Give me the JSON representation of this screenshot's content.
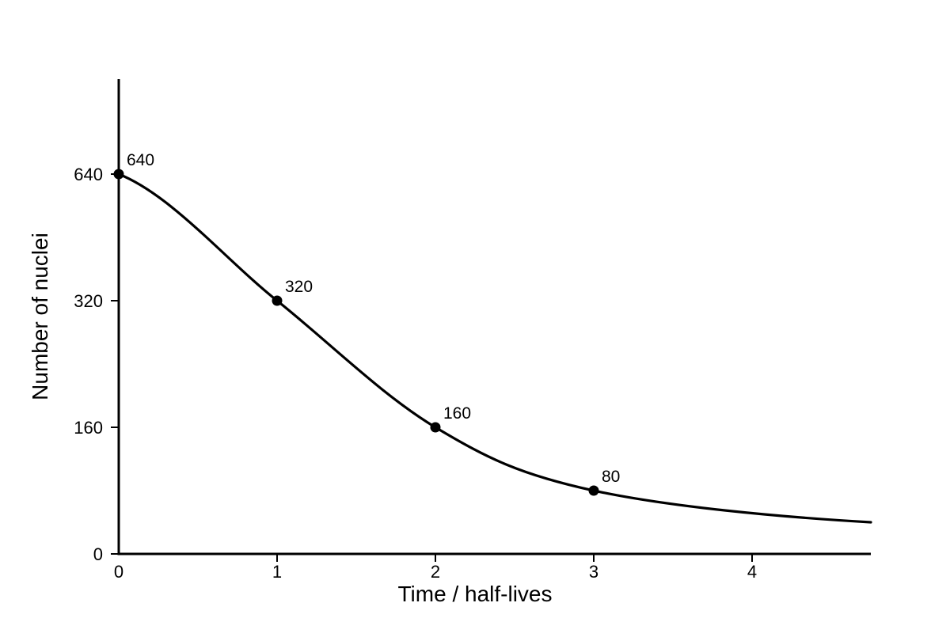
{
  "chart_data": {
    "type": "line",
    "title": "",
    "xlabel": "Time / half-lives",
    "ylabel": "Number of nuclei",
    "x_ticks": [
      "0",
      "1",
      "2",
      "3",
      "4"
    ],
    "y_ticks": [
      "0",
      "160",
      "320",
      "640"
    ],
    "series": [
      {
        "points": [
          {
            "x": 0,
            "y": 640,
            "label": "640"
          },
          {
            "x": 1,
            "y": 320,
            "label": "320"
          },
          {
            "x": 2,
            "y": 160,
            "label": "160"
          },
          {
            "x": 3,
            "y": 80,
            "label": "80"
          }
        ]
      }
    ],
    "curve_tail": {
      "x": 4.75,
      "y": 40
    },
    "grid": false,
    "color": "#000000"
  }
}
